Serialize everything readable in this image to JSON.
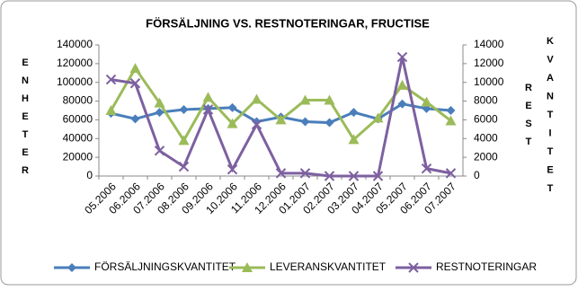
{
  "chart_data": {
    "type": "line",
    "title": "FÖRSÄLJNING VS. RESTNOTERINGAR, FRUCTISE",
    "y_label": "ENHETER",
    "y2_label": "KVANTITET",
    "y2_label_inner": "REST",
    "categories": [
      "05.2006",
      "06.2006",
      "07.2006",
      "08.2006",
      "09.2006",
      "10.2006",
      "11.2006",
      "12.2006",
      "01.2007",
      "02.2007",
      "03.2007",
      "04.2007",
      "05.2007",
      "06.2007",
      "07.2007"
    ],
    "series": [
      {
        "name": "FÖRSÄLJNINGSKVANTITET",
        "color": "#4a7ebb",
        "marker": "diamond",
        "values": [
          67000,
          61000,
          68000,
          71000,
          72000,
          73000,
          58000,
          63000,
          58000,
          57000,
          68000,
          61000,
          77000,
          72000,
          70000
        ]
      },
      {
        "name": "LEVERANSKVANTITET",
        "color": "#9bbb59",
        "marker": "triangle",
        "values": [
          70000,
          115000,
          78000,
          38000,
          84000,
          56000,
          82000,
          60000,
          81000,
          81000,
          39000,
          62000,
          97000,
          79000,
          59000
        ]
      },
      {
        "name": "RESTNOTERINGAR",
        "color": "#7d60a0",
        "marker": "x",
        "axis": "y2",
        "values": [
          10300,
          9900,
          2700,
          1000,
          7100,
          700,
          5500,
          300,
          300,
          0,
          0,
          0,
          12700,
          800,
          300
        ]
      }
    ],
    "ylim": [
      0,
      140000
    ],
    "yticks": [
      0,
      20000,
      40000,
      60000,
      80000,
      100000,
      120000,
      140000
    ],
    "y2lim": [
      0,
      14000
    ],
    "y2ticks": [
      0,
      2000,
      4000,
      6000,
      8000,
      10000,
      12000,
      14000
    ],
    "grid": false,
    "legend": "bottom"
  }
}
